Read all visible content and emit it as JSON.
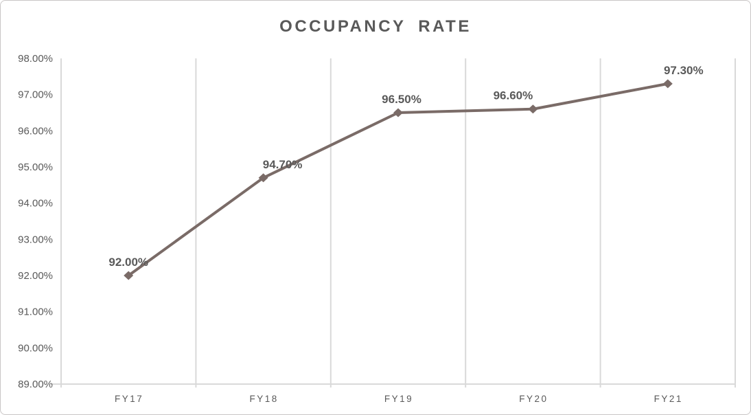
{
  "chart_data": {
    "type": "line",
    "title": "OCCUPANCY RATE",
    "categories": [
      "FY17",
      "FY18",
      "FY19",
      "FY20",
      "FY21"
    ],
    "series": [
      {
        "name": "Occupancy Rate",
        "values": [
          92.0,
          94.7,
          96.5,
          96.6,
          97.3
        ],
        "data_labels": [
          "92.00%",
          "94.70%",
          "96.50%",
          "96.60%",
          "97.30%"
        ]
      }
    ],
    "marker": "diamond",
    "y_axis": {
      "min": 89,
      "max": 98,
      "step": 1,
      "tick_labels": [
        "98.00%",
        "97.00%",
        "96.00%",
        "95.00%",
        "94.00%",
        "93.00%",
        "92.00%",
        "91.00%",
        "90.00%",
        "89.00%"
      ]
    },
    "grid": {
      "vertical": true,
      "horizontal": false
    },
    "legend": "none",
    "colors": {
      "series_line": "#7a6b67",
      "marker": "#7a6b67",
      "gridline": "#d9d9d9",
      "axis_line": "#d9d9d9",
      "title_text": "#595959",
      "tick_label_text": "#595959",
      "data_label_text": "#595959",
      "background": "#ffffff",
      "frame_border": "#c9c6c6"
    }
  }
}
